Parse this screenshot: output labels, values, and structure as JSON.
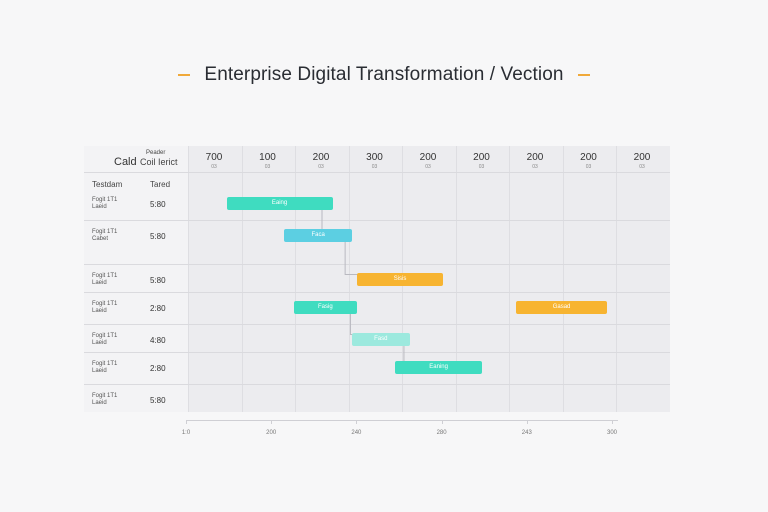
{
  "title": "Enterprise Digital Transformation / Vection",
  "colors": {
    "accent_dash": "#f0a93a"
  },
  "header": {
    "col1": "Cald",
    "col2_top": "Peader",
    "col2_bottom": "Coil Ierict",
    "row_col1": "Testdam",
    "row_col2": "Tared"
  },
  "time_headers": [
    {
      "main": "700",
      "sub": "03"
    },
    {
      "main": "100",
      "sub": "03"
    },
    {
      "main": "200",
      "sub": "03"
    },
    {
      "main": "300",
      "sub": "03"
    },
    {
      "main": "200",
      "sub": "03"
    },
    {
      "main": "200",
      "sub": "03"
    },
    {
      "main": "200",
      "sub": "03"
    },
    {
      "main": "200",
      "sub": "03"
    },
    {
      "main": "200",
      "sub": "03"
    }
  ],
  "rows": [
    {
      "label1": "Fogit 1T1",
      "label2": "Laeid",
      "value": "5:80"
    },
    {
      "label1": "Fogit 1T1",
      "label2": "Cabet",
      "value": "5:80"
    },
    {
      "label1": "Fogit 1T1",
      "label2": "Laeid",
      "value": "5:80"
    },
    {
      "label1": "Fogit 1T1",
      "label2": "Laeid",
      "value": "2:80"
    },
    {
      "label1": "Fogit 1T1",
      "label2": "Laeid",
      "value": "4:80"
    },
    {
      "label1": "Fogit 1T1",
      "label2": "Laeid",
      "value": "2:80"
    },
    {
      "label1": "Fogit 1T1",
      "label2": "Laeid",
      "value": "5:80"
    }
  ],
  "axis_ticks": [
    "1:0",
    "200",
    "240",
    "280",
    "243",
    "300"
  ],
  "chart_data": {
    "type": "gantt",
    "title": "Enterprise Digital Transformation / Vection",
    "tasks": [
      {
        "row": 0,
        "start": 0.08,
        "end": 0.3,
        "label": "Eaing",
        "color": "#3fdcc0"
      },
      {
        "row": 1,
        "start": 0.2,
        "end": 0.34,
        "label": "Faca",
        "color": "#5ccfe2"
      },
      {
        "row": 2,
        "start": 0.35,
        "end": 0.53,
        "label": "Sisis",
        "color": "#f7b431"
      },
      {
        "row": 3,
        "start": 0.22,
        "end": 0.35,
        "label": "Fasig",
        "color": "#3fdcc0"
      },
      {
        "row": 3,
        "start": 0.68,
        "end": 0.87,
        "label": "Gasad",
        "color": "#f7b431"
      },
      {
        "row": 4,
        "start": 0.34,
        "end": 0.46,
        "label": "Fasd",
        "color": "#9ce9de"
      },
      {
        "row": 5,
        "start": 0.43,
        "end": 0.61,
        "label": "Eaning",
        "color": "#3fdcc0"
      }
    ],
    "dependencies": [
      [
        0,
        1
      ],
      [
        1,
        2
      ],
      [
        3,
        5
      ],
      [
        5,
        6
      ]
    ]
  }
}
